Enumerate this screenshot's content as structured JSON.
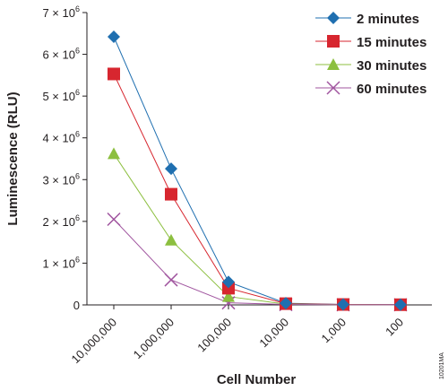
{
  "chart_data": {
    "type": "line",
    "categories": [
      "10,000,000",
      "1,000,000",
      "100,000",
      "10,000",
      "1,000",
      "100"
    ],
    "xlabel": "Cell Number",
    "ylabel": "Luminescence (RLU)",
    "ylim": [
      0,
      7000000
    ],
    "yticks": [
      {
        "value": 0,
        "label": "0"
      },
      {
        "value": 1000000,
        "label": "1 × 10",
        "exp": "6"
      },
      {
        "value": 2000000,
        "label": "2 × 10",
        "exp": "6"
      },
      {
        "value": 3000000,
        "label": "3 × 10",
        "exp": "6"
      },
      {
        "value": 4000000,
        "label": "4 × 10",
        "exp": "6"
      },
      {
        "value": 5000000,
        "label": "5 × 10",
        "exp": "6"
      },
      {
        "value": 6000000,
        "label": "6 × 10",
        "exp": "6"
      },
      {
        "value": 7000000,
        "label": "7 × 10",
        "exp": "6"
      }
    ],
    "grid": false,
    "legend_position": "top-right",
    "series": [
      {
        "name": "2 minutes",
        "marker": "diamond",
        "color": "#1f6fb0",
        "values": [
          6420000,
          3260000,
          550000,
          40000,
          10000,
          5000
        ]
      },
      {
        "name": "15 minutes",
        "marker": "square",
        "color": "#d7262f",
        "values": [
          5530000,
          2650000,
          400000,
          30000,
          10000,
          5000
        ]
      },
      {
        "name": "30 minutes",
        "marker": "triangle",
        "color": "#8cbf3f",
        "values": [
          3620000,
          1550000,
          200000,
          20000,
          5000,
          3000
        ]
      },
      {
        "name": "60 minutes",
        "marker": "x",
        "color": "#a0559f",
        "values": [
          2050000,
          600000,
          50000,
          10000,
          3000,
          2000
        ]
      }
    ]
  },
  "figure_code": "10201MA"
}
